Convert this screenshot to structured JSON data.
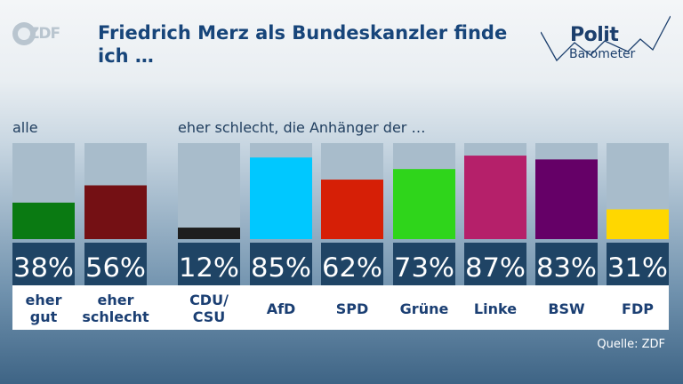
{
  "header": {
    "logo_text": "ZDF",
    "title": "Friedrich Merz als Bundeskanzler finde ich …",
    "brand_line1": "Polit",
    "brand_line2": "Barometer"
  },
  "labels": {
    "group_all": "alle",
    "group_parties": "eher schlecht, die Anhänger der …"
  },
  "source": "Quelle: ZDF",
  "chart_data": {
    "type": "bar",
    "title": "Friedrich Merz als Bundeskanzler finde ich …",
    "ylim": [
      0,
      100
    ],
    "categories": [
      "eher gut",
      "eher schlecht",
      "CDU/ CSU",
      "AfD",
      "SPD",
      "Grüne",
      "Linke",
      "BSW",
      "FDP"
    ],
    "values": [
      38,
      56,
      12,
      85,
      62,
      73,
      87,
      83,
      31
    ],
    "value_labels": [
      "38%",
      "56%",
      "12%",
      "85%",
      "62%",
      "73%",
      "87%",
      "83%",
      "31%"
    ],
    "colors": [
      "#0a7a12",
      "#741014",
      "#1e1e1e",
      "#00c8ff",
      "#d61f06",
      "#2fd51b",
      "#b5206a",
      "#650067",
      "#ffd700"
    ],
    "groups": [
      {
        "label": "alle",
        "categories": [
          "eher gut",
          "eher schlecht"
        ]
      },
      {
        "label": "eher schlecht, die Anhänger der …",
        "categories": [
          "CDU/ CSU",
          "AfD",
          "SPD",
          "Grüne",
          "Linke",
          "BSW",
          "FDP"
        ]
      }
    ]
  }
}
